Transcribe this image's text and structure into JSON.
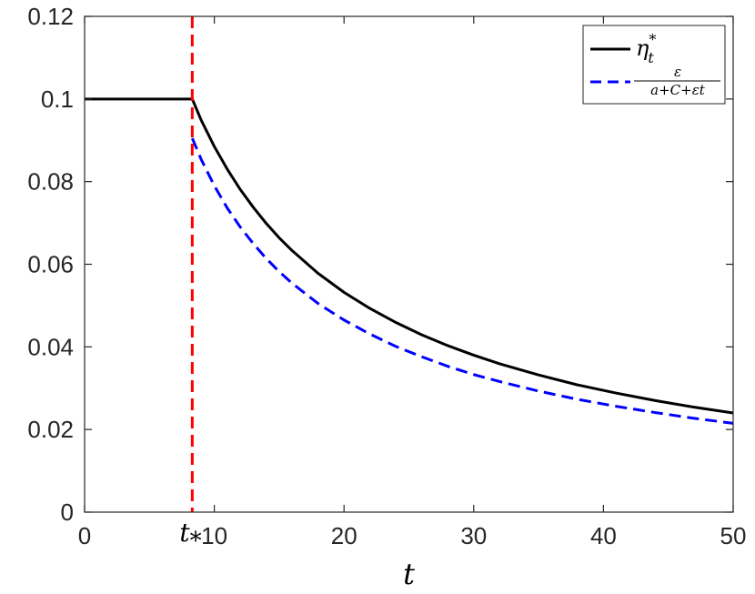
{
  "chart_data": {
    "type": "line",
    "title": "",
    "xlabel": "t",
    "ylabel": "",
    "xlim": [
      0,
      50
    ],
    "ylim": [
      0,
      0.12
    ],
    "xticks": [
      0,
      10,
      20,
      30,
      40,
      50
    ],
    "xtick_labels": [
      "0",
      "10",
      "20",
      "30",
      "40",
      "50"
    ],
    "yticks": [
      0,
      0.02,
      0.04,
      0.06,
      0.08,
      0.1,
      0.12
    ],
    "ytick_labels": [
      "0",
      "0.02",
      "0.04",
      "0.06",
      "0.08",
      "0.1",
      "0.12"
    ],
    "grid": false,
    "legend_position": "top-right",
    "vline": {
      "x": 8.3,
      "label": "t",
      "label_sub": "*",
      "color": "#ff0000",
      "style": "dashed"
    },
    "series": [
      {
        "name": "η*t",
        "name_base": "η",
        "name_sup": "*",
        "name_sub": "t",
        "color": "#000000",
        "style": "solid",
        "x": [
          0,
          8.3,
          9,
          10,
          11,
          12,
          13,
          14,
          15,
          16,
          18,
          20,
          22,
          24,
          26,
          28,
          30,
          32,
          35,
          38,
          41,
          44,
          47,
          50
        ],
        "y": [
          0.1,
          0.1,
          0.0948,
          0.0885,
          0.083,
          0.0781,
          0.0738,
          0.0699,
          0.0664,
          0.0633,
          0.0578,
          0.0532,
          0.0493,
          0.0459,
          0.0429,
          0.0403,
          0.038,
          0.0359,
          0.0332,
          0.0308,
          0.0288,
          0.027,
          0.0254,
          0.024
        ]
      },
      {
        "name": "ε/(a+C+εt)",
        "name_num": "ε",
        "name_den": "a+C+εt",
        "color": "#0000ff",
        "style": "dashed",
        "x": [
          8.3,
          9,
          10,
          11,
          12,
          13,
          14,
          15,
          16,
          18,
          20,
          22,
          24,
          26,
          28,
          30,
          32,
          35,
          38,
          41,
          44,
          47,
          50
        ],
        "y": [
          0.0905,
          0.0853,
          0.079,
          0.0736,
          0.069,
          0.065,
          0.0614,
          0.0582,
          0.0554,
          0.0505,
          0.0465,
          0.0431,
          0.0401,
          0.0376,
          0.0353,
          0.0333,
          0.0316,
          0.0293,
          0.0273,
          0.0256,
          0.0241,
          0.0227,
          0.0215
        ]
      }
    ]
  }
}
